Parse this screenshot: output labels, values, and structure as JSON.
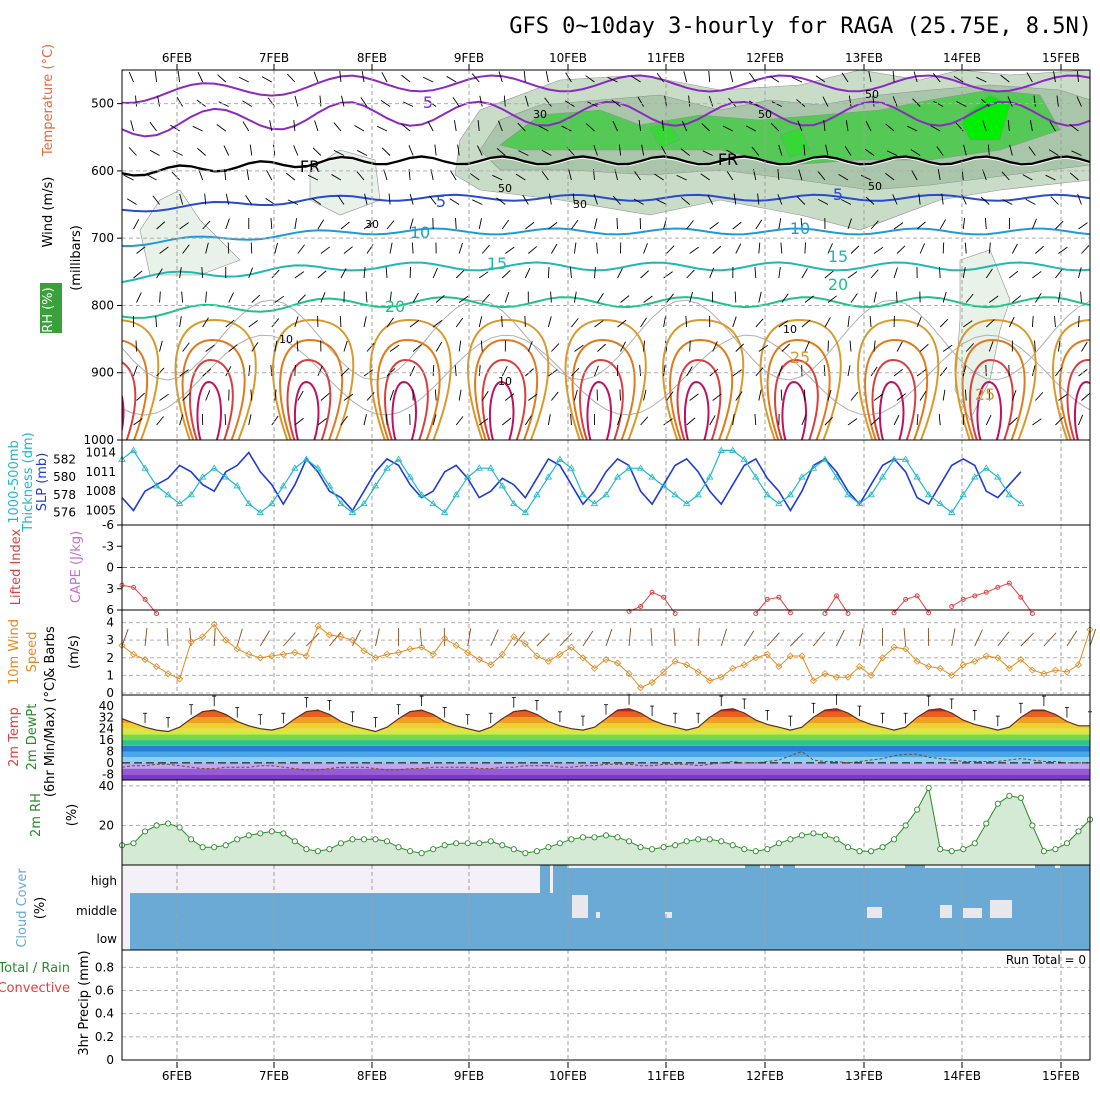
{
  "title": "GFS 0~10day 3-hourly for RAGA (25.75E, 8.5N)",
  "dates": [
    "6FEB",
    "7FEB",
    "8FEB",
    "9FEB",
    "10FEB",
    "11FEB",
    "12FEB",
    "13FEB",
    "14FEB",
    "15FEB"
  ],
  "colors": {
    "rh_fill": [
      "#e8f2e8",
      "#c8dcc8",
      "#a9c6aa",
      "#55c955",
      "#35d835",
      "#00ee00"
    ],
    "temp_pos": [
      "#d89a2a",
      "#e07a1a",
      "#d84040",
      "#c01060"
    ],
    "temp_neg": [
      "#8a2ac0",
      "#6020c0"
    ],
    "slp": "#1f3bd6",
    "thickness": "#21b7c7",
    "lifted": "#e04040",
    "wind": "#e08a1f",
    "rh2m": "#2a8a2a",
    "cloud": "#6aaad4",
    "freezing": "#000000"
  },
  "chart_data": [
    {
      "id": "upper",
      "type": "contour",
      "ylabel_parts": [
        "RH (%)",
        "Temperature (°C)",
        "Wind (m/s)",
        "(millibars)"
      ],
      "yticks": [
        500,
        600,
        700,
        800,
        900,
        1000
      ],
      "ylim": [
        450,
        1000
      ],
      "contour_labels": {
        "temp": [
          "5",
          "FR",
          "FR",
          "5",
          "5",
          "10",
          "10",
          "15",
          "15",
          "20",
          "20",
          "25",
          "25"
        ],
        "rh": [
          "50",
          "50",
          "50",
          "50",
          "30",
          "30",
          "30",
          "10",
          "10",
          "10"
        ]
      },
      "isotherms_hpa": {
        "5": 515,
        "FR": 585,
        "neg5": 640,
        "10": 690,
        "15": 742,
        "20": 795
      }
    },
    {
      "id": "slp_thick",
      "type": "line",
      "ylabel_parts": [
        "1000-500mb",
        "Thickness (dm)",
        "SLP (mb)"
      ],
      "left_ticks": [
        "582",
        "580",
        "578",
        "576"
      ],
      "right_ticks": [
        "1014",
        "1011",
        "1008",
        "1005"
      ],
      "slp": [
        1007,
        1005,
        1008,
        1009,
        1010,
        1012,
        1011,
        1009,
        1008,
        1011,
        1012,
        1014,
        1011,
        1009,
        1006,
        1009,
        1013,
        1011,
        1008,
        1007,
        1005,
        1008,
        1011,
        1013,
        1012,
        1009,
        1007,
        1008,
        1011,
        1012,
        1010,
        1007,
        1008,
        1010,
        1009,
        1007,
        1010,
        1013,
        1012,
        1009,
        1006,
        1008,
        1011,
        1013,
        1012,
        1008,
        1006,
        1009,
        1012,
        1013,
        1011,
        1008,
        1006,
        1009,
        1012,
        1013,
        1010,
        1008,
        1005,
        1008,
        1012,
        1013,
        1011,
        1008,
        1006,
        1009,
        1012,
        1013,
        1011,
        1007,
        1006,
        1009,
        1012,
        1013,
        1012,
        1008,
        1007,
        1009,
        1011
      ],
      "thickness": [
        582,
        583,
        581,
        579,
        578,
        577,
        578,
        580,
        581,
        580,
        579,
        577,
        576,
        577,
        579,
        581,
        582,
        581,
        579,
        577,
        576,
        577,
        579,
        581,
        582,
        580,
        578,
        577,
        576,
        578,
        580,
        581,
        581,
        579,
        577,
        576,
        578,
        580,
        582,
        581,
        578,
        577,
        578,
        580,
        581,
        581,
        580,
        579,
        578,
        577,
        578,
        580,
        583,
        583,
        582,
        580,
        578,
        577,
        578,
        580,
        581,
        582,
        580,
        578,
        577,
        578,
        580,
        582,
        582,
        580,
        578,
        577,
        576,
        578,
        580,
        581,
        580,
        578,
        577
      ]
    },
    {
      "id": "cape_li",
      "type": "line",
      "ylabel_parts": [
        "Lifted Index",
        "CAPE (J/kg)"
      ],
      "yticks": [
        "-6",
        "-3",
        "0",
        "3",
        "6"
      ],
      "lifted_segments": [
        {
          "start": 0,
          "values": [
            2.5,
            2.8,
            4.5,
            6.5
          ]
        },
        {
          "start": 44,
          "values": [
            6.2,
            5.5,
            3.5,
            4.2,
            6.5
          ]
        },
        {
          "start": 55,
          "values": [
            6.5,
            4.5,
            4.2,
            6.4
          ]
        },
        {
          "start": 61,
          "values": [
            6.5,
            4.0,
            6.5
          ]
        },
        {
          "start": 67,
          "values": [
            6.4,
            4.5,
            4.0,
            6.4
          ]
        },
        {
          "start": 72,
          "values": [
            5.5,
            4.5,
            4.0,
            3.5,
            2.8,
            2.2,
            4.2,
            6.5
          ]
        }
      ]
    },
    {
      "id": "wind10m",
      "type": "line",
      "ylabel_parts": [
        "10m Wind",
        "Speed",
        "& Barbs",
        "(m/s)"
      ],
      "yticks": [
        "0",
        "1",
        "2",
        "3",
        "4"
      ],
      "values": [
        2.7,
        2.2,
        1.9,
        1.5,
        1.1,
        0.8,
        2.9,
        3.2,
        3.9,
        3.0,
        2.5,
        2.2,
        2.0,
        2.1,
        2.2,
        2.3,
        2.1,
        3.8,
        3.3,
        3.2,
        3.0,
        2.4,
        2.0,
        2.2,
        2.3,
        2.5,
        2.6,
        2.2,
        3.1,
        2.7,
        2.3,
        1.9,
        1.6,
        2.2,
        3.2,
        2.8,
        2.1,
        1.8,
        2.2,
        2.6,
        2.0,
        1.4,
        1.9,
        1.7,
        1.1,
        0.3,
        0.6,
        1.2,
        1.8,
        1.6,
        1.2,
        0.7,
        0.9,
        1.4,
        1.6,
        2.0,
        2.2,
        1.5,
        2.1,
        2.1,
        0.7,
        1.1,
        0.9,
        0.9,
        1.5,
        1.0,
        2.0,
        2.6,
        2.5,
        1.8,
        1.5,
        1.4,
        1.0,
        1.6,
        1.8,
        2.1,
        2.0,
        1.4,
        1.9,
        1.3,
        1.1,
        1.3,
        1.2,
        1.6,
        3.6
      ]
    },
    {
      "id": "temp2m",
      "type": "area",
      "ylabel_parts": [
        "2m Temp",
        "2m DewPt",
        "(6hr Min/Max) (°C)"
      ],
      "yticks": [
        "40",
        "32",
        "24",
        "16",
        "8",
        "0",
        "-8"
      ],
      "bands": [
        {
          "lo": -12,
          "hi": -8,
          "color": "#7a3ac8"
        },
        {
          "lo": -8,
          "hi": -4,
          "color": "#9a5ad8"
        },
        {
          "lo": -4,
          "hi": 0,
          "color": "#c0a8f0"
        },
        {
          "lo": 0,
          "hi": 4,
          "color": "#8fd0f0"
        },
        {
          "lo": 4,
          "hi": 8,
          "color": "#4aa6e8"
        },
        {
          "lo": 8,
          "hi": 12,
          "color": "#2a7ad8"
        },
        {
          "lo": 12,
          "hi": 16,
          "color": "#2ec48a"
        },
        {
          "lo": 16,
          "hi": 20,
          "color": "#7ad84a"
        },
        {
          "lo": 20,
          "hi": 24,
          "color": "#d8e840"
        },
        {
          "lo": 24,
          "hi": 28,
          "color": "#f0d030"
        },
        {
          "lo": 28,
          "hi": 32,
          "color": "#f0a020"
        },
        {
          "lo": 32,
          "hi": 36,
          "color": "#e86020"
        },
        {
          "lo": 36,
          "hi": 40,
          "color": "#d02020"
        },
        {
          "lo": 40,
          "hi": 44,
          "color": "#8a1010"
        }
      ],
      "temp": [
        31,
        28,
        25,
        23,
        22,
        25,
        31,
        36,
        37,
        34,
        29,
        26,
        24,
        23,
        25,
        31,
        36,
        37,
        34,
        29,
        26,
        24,
        22,
        25,
        31,
        36,
        37,
        34,
        29,
        26,
        24,
        22,
        25,
        31,
        36,
        37,
        34,
        29,
        26,
        24,
        23,
        25,
        31,
        37,
        38,
        35,
        30,
        27,
        25,
        23,
        25,
        32,
        37,
        38,
        35,
        30,
        27,
        25,
        23,
        25,
        32,
        37,
        38,
        35,
        30,
        27,
        25,
        23,
        25,
        32,
        37,
        38,
        35,
        30,
        27,
        25,
        23,
        25,
        32,
        37,
        37,
        34,
        29,
        26,
        26,
        24,
        23,
        23,
        26
      ],
      "dewpt": [
        -3,
        -2,
        -2,
        -1,
        -1,
        -2,
        -3,
        -4,
        -4,
        -3,
        -3,
        -3,
        -2,
        -2,
        -3,
        -4,
        -5,
        -5,
        -4,
        -3,
        -3,
        -3,
        -4,
        -5,
        -5,
        -4,
        -4,
        -3,
        -3,
        -3,
        -3,
        -4,
        -4,
        -3,
        -3,
        -2,
        -2,
        -2,
        -3,
        -3,
        -2,
        -2,
        -1,
        -1,
        -1,
        -2,
        -2,
        -1,
        -1,
        -1,
        -2,
        -1,
        0,
        1,
        0,
        0,
        1,
        2,
        5,
        8,
        2,
        1,
        1,
        0,
        1,
        2,
        3,
        5,
        6,
        6,
        4,
        3,
        2,
        1,
        1,
        1,
        1,
        2,
        3,
        2,
        1,
        1,
        0,
        0,
        0
      ]
    },
    {
      "id": "rh2m",
      "type": "area",
      "ylabel_parts": [
        "2m RH",
        "(%)"
      ],
      "yticks": [
        "40",
        "20"
      ],
      "values": [
        10,
        11,
        17,
        20,
        21,
        19,
        13,
        9,
        9,
        10,
        13,
        15,
        16,
        17,
        16,
        12,
        8,
        7,
        8,
        11,
        13,
        13,
        13,
        12,
        9,
        7,
        6,
        8,
        10,
        11,
        11,
        11,
        12,
        10,
        8,
        6,
        7,
        9,
        11,
        13,
        14,
        14,
        15,
        14,
        12,
        9,
        8,
        9,
        10,
        12,
        13,
        13,
        12,
        10,
        8,
        7,
        8,
        11,
        13,
        15,
        16,
        15,
        13,
        9,
        7,
        7,
        9,
        13,
        20,
        28,
        39,
        8,
        7,
        8,
        11,
        21,
        31,
        35,
        34,
        20,
        7,
        8,
        11,
        17,
        23,
        25,
        23,
        19
      ]
    },
    {
      "id": "cloud",
      "type": "area",
      "ylabel_parts": [
        "Cloud Cover",
        "(%)"
      ],
      "level_labels": [
        "high",
        "middle",
        "low"
      ]
    },
    {
      "id": "precip",
      "type": "bar",
      "ylabel_parts": [
        "Total / Rain",
        "Convective",
        "3hr Precip (mm)"
      ],
      "yticks": [
        "0.8",
        "0.6",
        "0.4",
        "0.2",
        "0"
      ],
      "values": [],
      "run_total": "Run Total = 0"
    }
  ]
}
